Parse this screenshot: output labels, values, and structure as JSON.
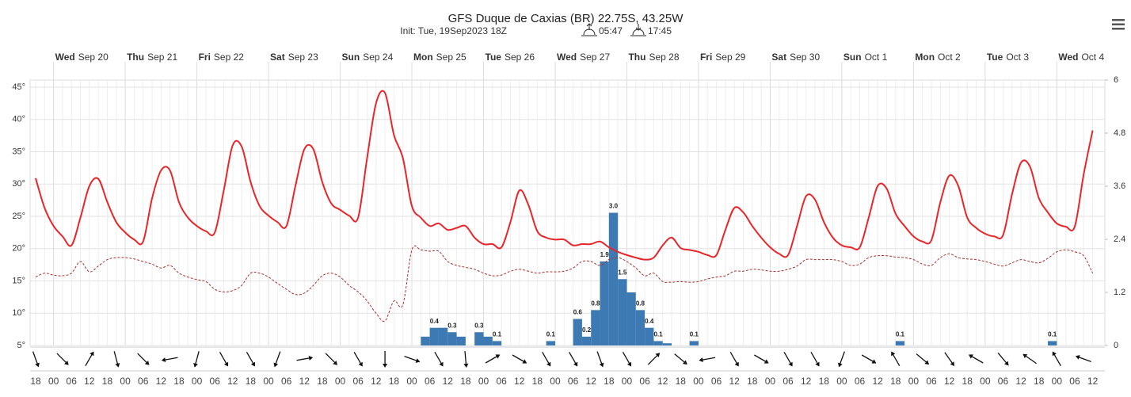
{
  "chart_data": {
    "type": "meteogram",
    "title": "GFS Duque de Caxias (BR) 22.75S, 43.25W",
    "subtitle": "Init: Tue, 19Sep2023 18Z",
    "sunrise": "05:47",
    "sunset": "17:45",
    "days": [
      {
        "weekday": "Wed",
        "date": "Sep 20"
      },
      {
        "weekday": "Thu",
        "date": "Sep 21"
      },
      {
        "weekday": "Fri",
        "date": "Sep 22"
      },
      {
        "weekday": "Sat",
        "date": "Sep 23"
      },
      {
        "weekday": "Sun",
        "date": "Sep 24"
      },
      {
        "weekday": "Mon",
        "date": "Sep 25"
      },
      {
        "weekday": "Tue",
        "date": "Sep 26"
      },
      {
        "weekday": "Wed",
        "date": "Sep 27"
      },
      {
        "weekday": "Thu",
        "date": "Sep 28"
      },
      {
        "weekday": "Fri",
        "date": "Sep 29"
      },
      {
        "weekday": "Sat",
        "date": "Sep 30"
      },
      {
        "weekday": "Sun",
        "date": "Oct 1"
      },
      {
        "weekday": "Mon",
        "date": "Oct 2"
      },
      {
        "weekday": "Tue",
        "date": "Oct 3"
      },
      {
        "weekday": "Wed",
        "date": "Oct 4"
      }
    ],
    "categories": [
      "18",
      null,
      "00",
      null,
      "06",
      null,
      "12",
      null,
      "18",
      null,
      "00",
      null,
      "06",
      null,
      "12",
      null,
      "18",
      null,
      "00",
      null,
      "06",
      null,
      "12",
      null,
      "18",
      null,
      "00",
      null,
      "06",
      null,
      "12",
      null,
      "18",
      null,
      "00",
      null,
      "06",
      null,
      "12",
      null,
      "18",
      null,
      "00",
      null,
      "06",
      null,
      "12",
      null,
      "18",
      null,
      "00",
      null,
      "06",
      null,
      "12",
      null,
      "18",
      null,
      "00",
      null,
      "06",
      null,
      "12",
      null,
      "18",
      null,
      "00",
      null,
      "06",
      null,
      "12",
      null,
      "18",
      null,
      "00",
      null,
      "06",
      null,
      "12",
      null,
      "18",
      null,
      "00",
      null,
      "06",
      null,
      "12",
      null,
      "18",
      null,
      "00",
      null,
      "06",
      null,
      "12",
      null,
      "18",
      null,
      "00",
      null,
      "06",
      null,
      "12",
      null,
      "18",
      null,
      "00",
      null,
      "06",
      null,
      "12",
      null,
      "18",
      null,
      "00",
      null,
      "06",
      null,
      "12"
    ],
    "ylim": [
      5,
      46.1
    ],
    "yticks": [
      {
        "value": 5,
        "label": "5°"
      },
      {
        "value": 10,
        "label": "10°"
      },
      {
        "value": 15,
        "label": "15°"
      },
      {
        "value": 20,
        "label": "20°"
      },
      {
        "value": 25,
        "label": "25°"
      },
      {
        "value": 30,
        "label": "30°"
      },
      {
        "value": 35,
        "label": "35°"
      },
      {
        "value": 40,
        "label": "40°"
      },
      {
        "value": 45,
        "label": "45°"
      }
    ],
    "y2lim": [
      0,
      6
    ],
    "y2ticks": [
      0,
      1.2,
      2.4,
      3.6,
      4.8,
      6
    ],
    "grid": true,
    "series": [
      {
        "name": "Temperature",
        "color": "#e8262a",
        "style": "solid",
        "values": [
          30.9,
          26.3,
          23.5,
          21.9,
          20.5,
          24.8,
          29.7,
          30.8,
          27.2,
          24.1,
          22.5,
          21.4,
          21.1,
          27.8,
          32.1,
          32.1,
          27.2,
          24.8,
          23.5,
          22.7,
          22.5,
          29.0,
          36.0,
          35.8,
          30.3,
          26.6,
          25.1,
          24.1,
          23.5,
          29.7,
          35.4,
          35.4,
          30.3,
          27.0,
          26.0,
          25.1,
          24.8,
          34.0,
          42.5,
          44.1,
          37.6,
          34.0,
          26.6,
          24.8,
          23.5,
          23.9,
          22.9,
          23.2,
          23.5,
          21.7,
          20.7,
          20.7,
          20.2,
          24.1,
          29.0,
          26.8,
          22.7,
          21.7,
          21.4,
          21.4,
          20.5,
          20.7,
          20.7,
          21.1,
          20.2,
          19.5,
          19.0,
          18.6,
          18.3,
          18.6,
          20.5,
          21.7,
          20.1,
          19.8,
          19.5,
          19.0,
          19.0,
          22.9,
          26.3,
          25.6,
          23.5,
          21.7,
          20.2,
          19.2,
          19.0,
          23.5,
          28.1,
          27.6,
          24.1,
          21.7,
          20.5,
          20.2,
          20.2,
          24.8,
          29.7,
          29.3,
          25.4,
          23.5,
          21.9,
          21.1,
          21.3,
          27.2,
          31.3,
          29.7,
          24.8,
          23.2,
          22.3,
          21.9,
          22.1,
          28.4,
          33.3,
          32.7,
          27.8,
          25.6,
          23.9,
          23.4,
          23.4,
          31.5,
          38.3
        ]
      },
      {
        "name": "Dew point",
        "color": "#a8302e",
        "style": "dashed",
        "values": [
          15.6,
          16.2,
          15.9,
          15.8,
          16.2,
          18.0,
          16.4,
          17.3,
          18.3,
          18.6,
          18.6,
          18.4,
          18.0,
          17.6,
          17.0,
          17.4,
          16.2,
          15.6,
          15.2,
          14.9,
          13.7,
          13.3,
          13.5,
          14.3,
          16.2,
          16.2,
          15.6,
          14.6,
          13.7,
          12.9,
          13.1,
          14.3,
          15.8,
          16.2,
          15.6,
          14.3,
          13.3,
          11.9,
          10.0,
          8.8,
          11.9,
          11.3,
          19.8,
          19.8,
          19.6,
          19.6,
          18.0,
          17.4,
          17.1,
          16.8,
          16.2,
          15.8,
          15.9,
          16.5,
          16.8,
          16.5,
          16.2,
          16.4,
          16.4,
          16.5,
          17.0,
          18.0,
          18.0,
          17.4,
          18.3,
          18.6,
          18.0,
          17.0,
          15.8,
          16.2,
          14.9,
          14.8,
          14.9,
          14.8,
          14.9,
          15.3,
          15.6,
          15.8,
          16.5,
          16.5,
          16.8,
          16.7,
          16.5,
          16.5,
          16.8,
          17.3,
          18.3,
          18.3,
          18.3,
          18.3,
          18.0,
          17.4,
          17.6,
          18.6,
          18.9,
          18.9,
          18.7,
          18.6,
          18.3,
          17.6,
          17.4,
          18.6,
          19.2,
          18.6,
          18.4,
          18.3,
          18.0,
          17.6,
          17.3,
          17.8,
          18.3,
          18.0,
          17.8,
          18.5,
          19.5,
          19.8,
          19.5,
          18.9,
          16.2
        ]
      },
      {
        "name": "Precipitation",
        "color": "#3d7ab3",
        "axis": "y2",
        "values": [
          0,
          0,
          0,
          0,
          0,
          0,
          0,
          0,
          0,
          0,
          0,
          0,
          0,
          0,
          0,
          0,
          0,
          0,
          0,
          0,
          0,
          0,
          0,
          0,
          0,
          0,
          0,
          0,
          0,
          0,
          0,
          0,
          0,
          0,
          0,
          0,
          0,
          0,
          0,
          0,
          0,
          0,
          0,
          0.2,
          0.4,
          0.4,
          0.3,
          0.2,
          0,
          0.3,
          0.2,
          0.1,
          0,
          0,
          0,
          0,
          0,
          0.1,
          0,
          0,
          0.6,
          0.2,
          0.8,
          1.9,
          3.0,
          1.5,
          1.2,
          0.8,
          0.4,
          0.1,
          0.05,
          0,
          0,
          0.1,
          0,
          0,
          0,
          0,
          0,
          0,
          0,
          0,
          0,
          0,
          0,
          0,
          0,
          0,
          0,
          0,
          0,
          0,
          0,
          0,
          0,
          0,
          0.1,
          0,
          0,
          0,
          0,
          0,
          0,
          0,
          0,
          0,
          0,
          0,
          0,
          0,
          0,
          0,
          0,
          0.1,
          0,
          0,
          0,
          0,
          0
        ],
        "value_labels": [
          null,
          null,
          null,
          null,
          null,
          null,
          null,
          null,
          null,
          null,
          null,
          null,
          null,
          null,
          null,
          null,
          null,
          null,
          null,
          null,
          null,
          null,
          null,
          null,
          null,
          null,
          null,
          null,
          null,
          null,
          null,
          null,
          null,
          null,
          null,
          null,
          null,
          null,
          null,
          null,
          null,
          null,
          null,
          null,
          "0.4",
          null,
          "0.3",
          null,
          null,
          "0.3",
          null,
          "0.1",
          null,
          null,
          null,
          null,
          null,
          "0.1",
          null,
          null,
          "0.6",
          "0.2",
          "0.8",
          "1.9",
          "3.0",
          "1.5",
          null,
          "0.8",
          "0.4",
          "0.1",
          null,
          null,
          null,
          "0.1",
          null,
          null,
          null,
          null,
          null,
          null,
          null,
          null,
          null,
          null,
          null,
          null,
          null,
          null,
          null,
          null,
          null,
          null,
          null,
          null,
          null,
          null,
          "0.1",
          null,
          null,
          null,
          null,
          null,
          null,
          null,
          null,
          null,
          null,
          null,
          null,
          null,
          null,
          null,
          null,
          "0.1",
          null,
          null,
          null,
          null,
          null
        ]
      }
    ],
    "wind_direction": [
      160,
      135,
      30,
      165,
      135,
      260,
      195,
      150,
      150,
      200,
      80,
      135,
      150,
      180,
      110,
      150,
      175,
      60,
      120,
      150,
      150,
      160,
      150,
      45,
      130,
      260,
      150,
      120,
      150,
      150,
      200,
      120,
      330,
      130,
      145,
      300,
      140,
      305,
      330,
      290
    ]
  }
}
